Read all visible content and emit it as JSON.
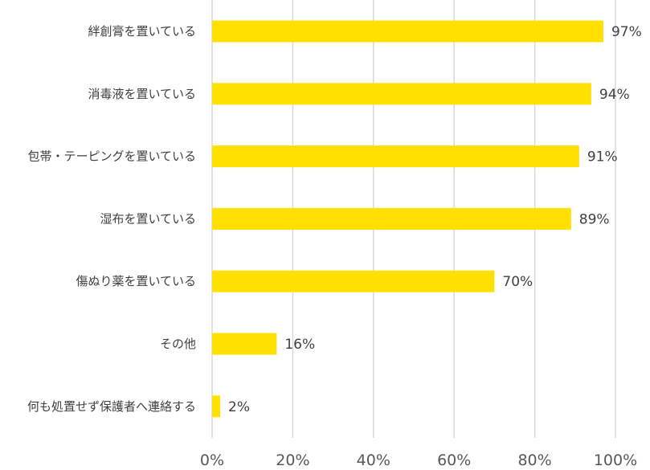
{
  "chart_data": {
    "type": "bar",
    "orientation": "horizontal",
    "title": "",
    "xlabel": "",
    "ylabel": "",
    "xlim": [
      0,
      100
    ],
    "x_ticks": [
      "0%",
      "20%",
      "40%",
      "60%",
      "80%",
      "100%"
    ],
    "grid": "vertical",
    "legend": "none",
    "bar_color": "#FFE000",
    "categories": [
      "絆創膏を置いている",
      "消毒液を置いている",
      "包帯・テーピングを置いている",
      "湿布を置いている",
      "傷ぬり薬を置いている",
      "その他",
      "何も処置せず保護者へ連絡する"
    ],
    "values": [
      97,
      94,
      91,
      89,
      70,
      16,
      2
    ],
    "value_labels": [
      "97%",
      "94%",
      "91%",
      "89%",
      "70%",
      "16%",
      "2%"
    ]
  }
}
